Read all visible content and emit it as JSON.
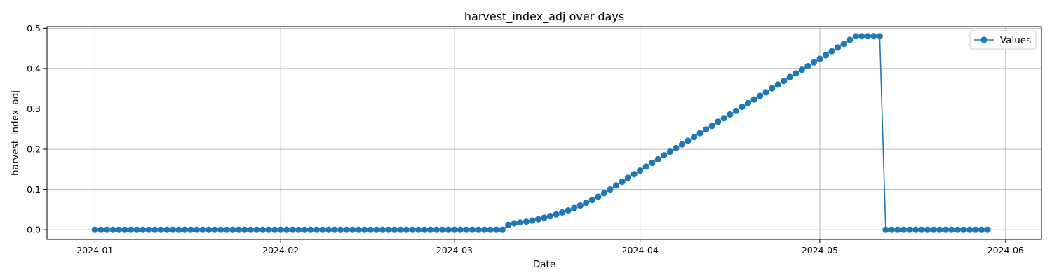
{
  "chart_data": {
    "type": "line",
    "title": "harvest_index_adj over days",
    "xlabel": "Date",
    "ylabel": "harvest_index_adj",
    "x_start": "2024-01-01",
    "x_end": "2024-05-30",
    "xlim": [
      "2023-12-24",
      "2024-06-07"
    ],
    "ylim": [
      -0.024,
      0.504
    ],
    "x_ticks": [
      "2024-01-01",
      "2024-02-01",
      "2024-03-01",
      "2024-04-01",
      "2024-05-01",
      "2024-06-01"
    ],
    "x_tick_labels": [
      "2024-01",
      "2024-02",
      "2024-03",
      "2024-04",
      "2024-05",
      "2024-06"
    ],
    "y_ticks": [
      0.0,
      0.1,
      0.2,
      0.3,
      0.4,
      0.5
    ],
    "y_tick_labels": [
      "0.0",
      "0.1",
      "0.2",
      "0.3",
      "0.4",
      "0.5"
    ],
    "grid": true,
    "legend": "top-right",
    "series": [
      {
        "name": "Values",
        "color": "#1f77b4",
        "marker": "circle",
        "values": [
          0,
          0,
          0,
          0,
          0,
          0,
          0,
          0,
          0,
          0,
          0,
          0,
          0,
          0,
          0,
          0,
          0,
          0,
          0,
          0,
          0,
          0,
          0,
          0,
          0,
          0,
          0,
          0,
          0,
          0,
          0,
          0,
          0,
          0,
          0,
          0,
          0,
          0,
          0,
          0,
          0,
          0,
          0,
          0,
          0,
          0,
          0,
          0,
          0,
          0,
          0,
          0,
          0,
          0,
          0,
          0,
          0,
          0,
          0,
          0,
          0,
          0,
          0,
          0,
          0,
          0,
          0,
          0,
          0,
          0.012,
          0.016,
          0.018,
          0.02,
          0.023,
          0.026,
          0.03,
          0.034,
          0.038,
          0.043,
          0.048,
          0.054,
          0.06,
          0.067,
          0.074,
          0.082,
          0.091,
          0.1,
          0.11,
          0.119,
          0.129,
          0.138,
          0.147,
          0.157,
          0.166,
          0.175,
          0.185,
          0.194,
          0.203,
          0.212,
          0.221,
          0.23,
          0.24,
          0.249,
          0.258,
          0.268,
          0.277,
          0.286,
          0.295,
          0.305,
          0.314,
          0.323,
          0.332,
          0.341,
          0.351,
          0.36,
          0.369,
          0.379,
          0.388,
          0.397,
          0.406,
          0.415,
          0.424,
          0.433,
          0.443,
          0.452,
          0.461,
          0.471,
          0.48,
          0.48,
          0.48,
          0.48,
          0.48,
          0,
          0,
          0,
          0,
          0,
          0,
          0,
          0,
          0,
          0,
          0,
          0,
          0,
          0,
          0,
          0,
          0,
          0
        ]
      }
    ]
  },
  "legend_label": "Values"
}
